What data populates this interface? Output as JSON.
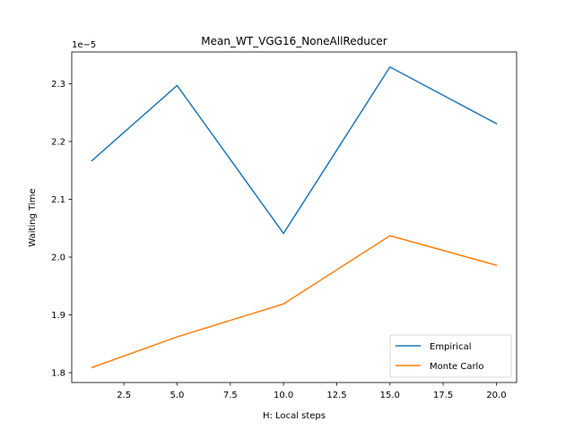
{
  "chart_data": {
    "type": "line",
    "title": "Mean_WT_VGG16_NoneAllReducer",
    "xlabel": "H: Local steps",
    "ylabel": "Waiting Time",
    "offset_label": "1e−5",
    "x": [
      1,
      5,
      10,
      15,
      20
    ],
    "series": [
      {
        "name": "Empirical",
        "color": "#1f77b4",
        "values": [
          2.167,
          2.297,
          2.041,
          2.329,
          2.231
        ]
      },
      {
        "name": "Monte Carlo",
        "color": "#ff7f0e",
        "values": [
          1.809,
          1.862,
          1.919,
          2.037,
          1.986
        ]
      }
    ],
    "xlim": [
      0.05,
      20.95
    ],
    "ylim": [
      1.783,
      2.355
    ],
    "xticks": [
      2.5,
      5.0,
      7.5,
      10.0,
      12.5,
      15.0,
      17.5,
      20.0
    ],
    "xtick_labels": [
      "2.5",
      "5.0",
      "7.5",
      "10.0",
      "12.5",
      "15.0",
      "17.5",
      "20.0"
    ],
    "yticks": [
      1.8,
      1.9,
      2.0,
      2.1,
      2.2,
      2.3
    ],
    "ytick_labels": [
      "1.8",
      "1.9",
      "2.0",
      "2.1",
      "2.2",
      "2.3"
    ],
    "legend_position": "lower-right",
    "grid": false
  }
}
